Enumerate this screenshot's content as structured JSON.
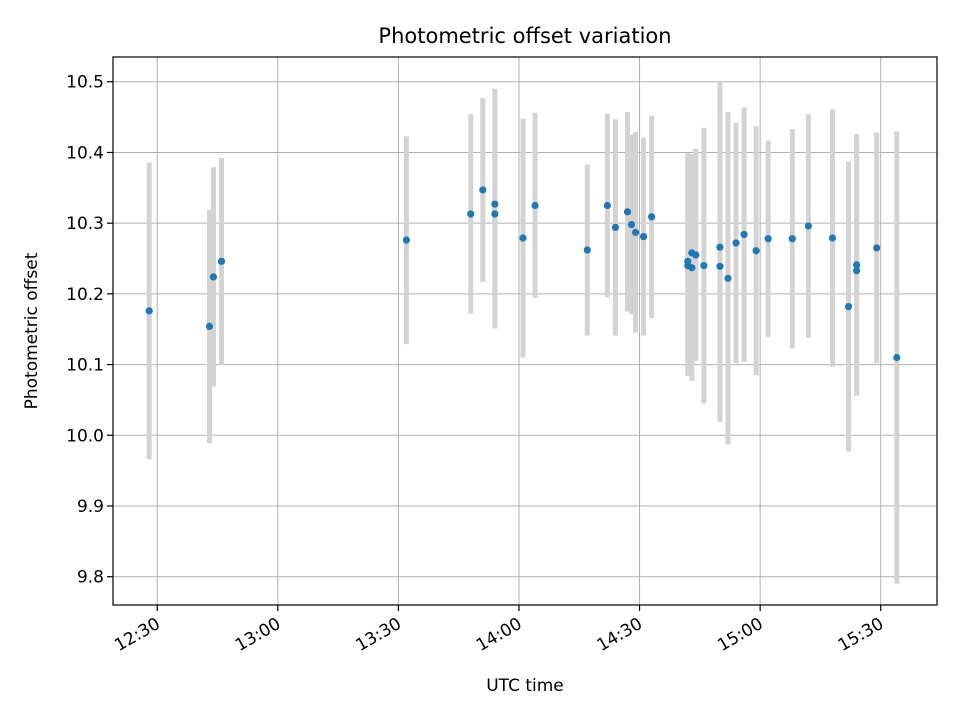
{
  "chart_data": {
    "type": "scatter",
    "title": "Photometric offset variation",
    "xlabel": "UTC time",
    "ylabel": "Photometric offset",
    "x_tick_labels": [
      "12:30",
      "13:00",
      "13:30",
      "14:00",
      "14:30",
      "15:00",
      "15:30"
    ],
    "y_tick_labels": [
      "9.8",
      "9.9",
      "10.0",
      "10.1",
      "10.2",
      "10.3",
      "10.4",
      "10.5"
    ],
    "xlim": [
      "12:19",
      "15:44"
    ],
    "ylim": [
      9.76,
      10.535
    ],
    "grid": true,
    "colors": {
      "points": "#1f77b4",
      "error_bars": "#d3d3d3"
    },
    "series": [
      {
        "points": [
          {
            "x": "12:28",
            "y": 10.176,
            "err": 0.21
          },
          {
            "x": "12:43",
            "y": 10.154,
            "err": 0.165
          },
          {
            "x": "12:44",
            "y": 10.224,
            "err": 0.155
          },
          {
            "x": "12:46",
            "y": 10.246,
            "err": 0.146
          },
          {
            "x": "13:32",
            "y": 10.276,
            "err": 0.147
          },
          {
            "x": "13:48",
            "y": 10.313,
            "err": 0.141
          },
          {
            "x": "13:51",
            "y": 10.347,
            "err": 0.13
          },
          {
            "x": "13:54",
            "y": 10.313,
            "err": 0.162
          },
          {
            "x": "13:54",
            "y": 10.327,
            "err": 0.163
          },
          {
            "x": "14:01",
            "y": 10.279,
            "err": 0.169
          },
          {
            "x": "14:04",
            "y": 10.325,
            "err": 0.131
          },
          {
            "x": "14:17",
            "y": 10.262,
            "err": 0.121
          },
          {
            "x": "14:22",
            "y": 10.325,
            "err": 0.13
          },
          {
            "x": "14:24",
            "y": 10.294,
            "err": 0.153
          },
          {
            "x": "14:27",
            "y": 10.316,
            "err": 0.141
          },
          {
            "x": "14:28",
            "y": 10.298,
            "err": 0.127
          },
          {
            "x": "14:29",
            "y": 10.287,
            "err": 0.142
          },
          {
            "x": "14:31",
            "y": 10.281,
            "err": 0.14
          },
          {
            "x": "14:33",
            "y": 10.309,
            "err": 0.143
          },
          {
            "x": "14:42",
            "y": 10.246,
            "err": 0.153
          },
          {
            "x": "14:42",
            "y": 10.24,
            "err": 0.156
          },
          {
            "x": "14:43",
            "y": 10.258,
            "err": 0.14
          },
          {
            "x": "14:43",
            "y": 10.237,
            "err": 0.16
          },
          {
            "x": "14:44",
            "y": 10.255,
            "err": 0.15
          },
          {
            "x": "14:46",
            "y": 10.24,
            "err": 0.195
          },
          {
            "x": "14:50",
            "y": 10.266,
            "err": 0.234
          },
          {
            "x": "14:50",
            "y": 10.239,
            "err": 0.22
          },
          {
            "x": "14:52",
            "y": 10.222,
            "err": 0.235
          },
          {
            "x": "14:54",
            "y": 10.272,
            "err": 0.17
          },
          {
            "x": "14:56",
            "y": 10.284,
            "err": 0.18
          },
          {
            "x": "14:59",
            "y": 10.261,
            "err": 0.176
          },
          {
            "x": "15:02",
            "y": 10.278,
            "err": 0.139
          },
          {
            "x": "15:08",
            "y": 10.278,
            "err": 0.155
          },
          {
            "x": "15:12",
            "y": 10.296,
            "err": 0.158
          },
          {
            "x": "15:18",
            "y": 10.279,
            "err": 0.182
          },
          {
            "x": "15:22",
            "y": 10.182,
            "err": 0.205
          },
          {
            "x": "15:24",
            "y": 10.241,
            "err": 0.185
          },
          {
            "x": "15:24",
            "y": 10.233,
            "err": 0.175
          },
          {
            "x": "15:29",
            "y": 10.265,
            "err": 0.163
          },
          {
            "x": "15:34",
            "y": 10.11,
            "err": 0.32
          }
        ]
      }
    ]
  }
}
